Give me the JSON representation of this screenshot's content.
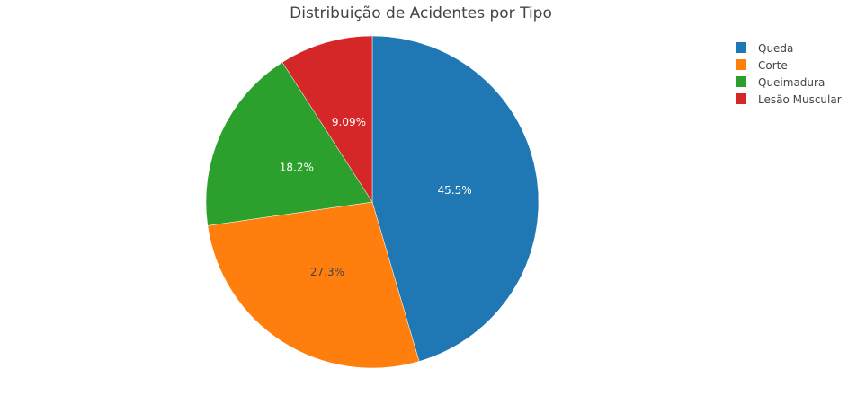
{
  "chart_data": {
    "type": "pie",
    "title": "Distribuição de Acidentes por Tipo",
    "categories": [
      "Queda",
      "Corte",
      "Queimadura",
      "Lesão Muscular"
    ],
    "values": [
      5,
      3,
      2,
      1
    ],
    "percent_labels": [
      "45.5%",
      "27.3%",
      "18.2%",
      "9.09%"
    ],
    "colors": [
      "#1f77b4",
      "#ff7f0e",
      "#2ca02c",
      "#d62728"
    ],
    "label_colors": [
      "#ffffff",
      "#444444",
      "#ffffff",
      "#ffffff"
    ],
    "direction": "clockwise",
    "start_angle": "top",
    "legend_position": "top-right"
  }
}
